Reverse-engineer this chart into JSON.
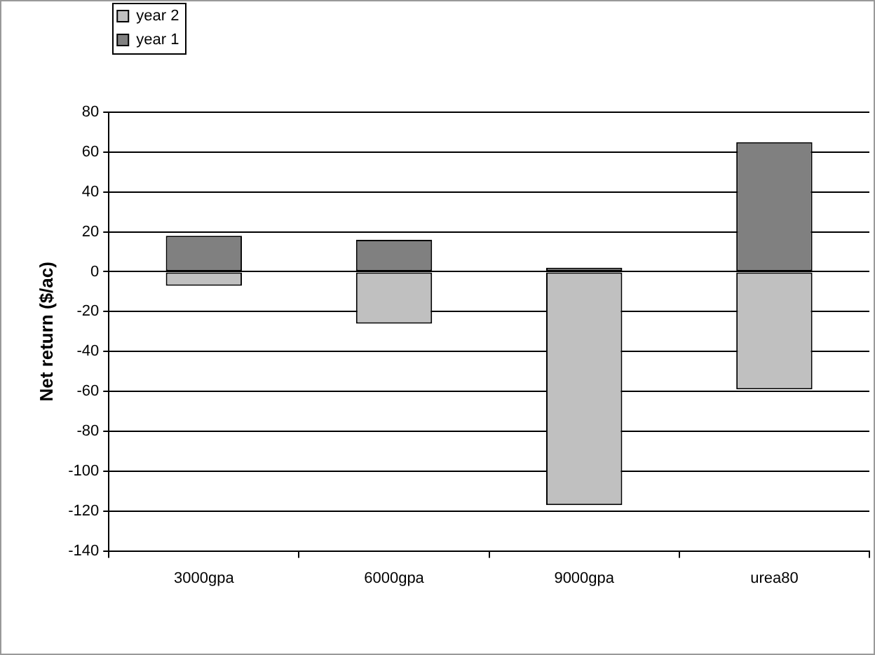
{
  "chart_data": {
    "type": "bar",
    "ylabel": "Net return ($/ac)",
    "categories": [
      "3000gpa",
      "6000gpa",
      "9000gpa",
      "urea80"
    ],
    "stacked": true,
    "series": [
      {
        "name": "year 2",
        "color": "#c0c0c0",
        "values": [
          -7,
          -26,
          -117,
          -59
        ]
      },
      {
        "name": "year 1",
        "color": "#808080",
        "values": [
          18,
          16,
          2,
          65
        ]
      }
    ],
    "ylim": [
      -140,
      80
    ],
    "yticks": [
      -140,
      -120,
      -100,
      -80,
      -60,
      -40,
      -20,
      0,
      20,
      40,
      60,
      80
    ],
    "grid": "y",
    "legend": "top left"
  }
}
